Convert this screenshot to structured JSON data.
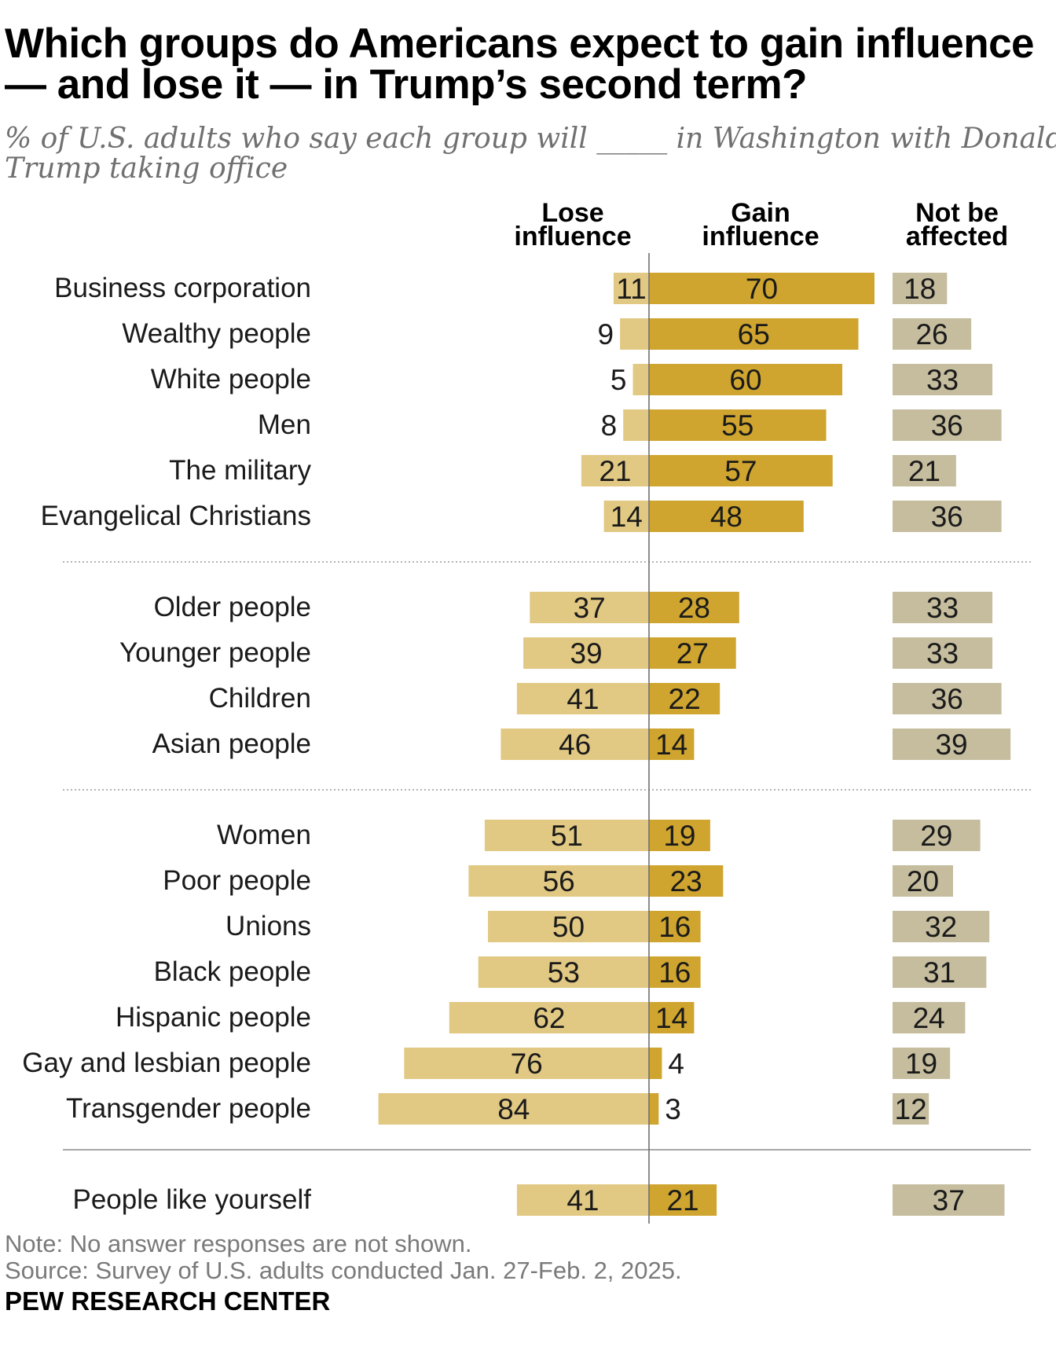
{
  "title_lines": [
    "Which groups do Americans expect to gain influence",
    "— and lose it — in Trump’s second term?"
  ],
  "subtitle_lines": [
    "% of U.S. adults who say each group will _____ in Washington with Donald",
    "Trump taking office"
  ],
  "note": "Note: No answer responses are not shown.",
  "source": "Source: Survey of U.S. adults conducted Jan. 27-Feb. 2, 2025.",
  "brand": "PEW RESEARCH CENTER",
  "colors": {
    "lose": "#e1c883",
    "gain": "#cfa52f",
    "not_affected": "#c5bd9e",
    "axis": "#6f6f6f",
    "divider_dotted": "#9a9a9a",
    "divider_solid": "#8a8a8a"
  },
  "chart_data": {
    "type": "bar",
    "columns": [
      {
        "key": "lose",
        "header_lines": [
          "Lose",
          "influence"
        ]
      },
      {
        "key": "gain",
        "header_lines": [
          "Gain",
          "influence"
        ]
      },
      {
        "key": "not_affected",
        "header_lines": [
          "Not be",
          "affected"
        ]
      }
    ],
    "groups": [
      {
        "divider_before": "none",
        "rows": [
          {
            "label": "Business corporation",
            "lose": 11,
            "gain": 70,
            "not_affected": 18
          },
          {
            "label": "Wealthy people",
            "lose": 9,
            "gain": 65,
            "not_affected": 26
          },
          {
            "label": "White people",
            "lose": 5,
            "gain": 60,
            "not_affected": 33
          },
          {
            "label": "Men",
            "lose": 8,
            "gain": 55,
            "not_affected": 36
          },
          {
            "label": "The military",
            "lose": 21,
            "gain": 57,
            "not_affected": 21
          },
          {
            "label": "Evangelical Christians",
            "lose": 14,
            "gain": 48,
            "not_affected": 36
          }
        ]
      },
      {
        "divider_before": "dotted",
        "rows": [
          {
            "label": "Older people",
            "lose": 37,
            "gain": 28,
            "not_affected": 33
          },
          {
            "label": "Younger people",
            "lose": 39,
            "gain": 27,
            "not_affected": 33
          },
          {
            "label": "Children",
            "lose": 41,
            "gain": 22,
            "not_affected": 36
          },
          {
            "label": "Asian people",
            "lose": 46,
            "gain": 14,
            "not_affected": 39
          }
        ]
      },
      {
        "divider_before": "dotted",
        "rows": [
          {
            "label": "Women",
            "lose": 51,
            "gain": 19,
            "not_affected": 29
          },
          {
            "label": "Poor people",
            "lose": 56,
            "gain": 23,
            "not_affected": 20
          },
          {
            "label": "Unions",
            "lose": 50,
            "gain": 16,
            "not_affected": 32
          },
          {
            "label": "Black people",
            "lose": 53,
            "gain": 16,
            "not_affected": 31
          },
          {
            "label": "Hispanic people",
            "lose": 62,
            "gain": 14,
            "not_affected": 24
          },
          {
            "label": "Gay and lesbian people",
            "lose": 76,
            "gain": 4,
            "not_affected": 19
          },
          {
            "label": "Transgender people",
            "lose": 84,
            "gain": 3,
            "not_affected": 12
          }
        ]
      },
      {
        "divider_before": "solid",
        "rows": [
          {
            "label": "People like yourself",
            "lose": 41,
            "gain": 21,
            "not_affected": 37
          }
        ]
      }
    ]
  }
}
